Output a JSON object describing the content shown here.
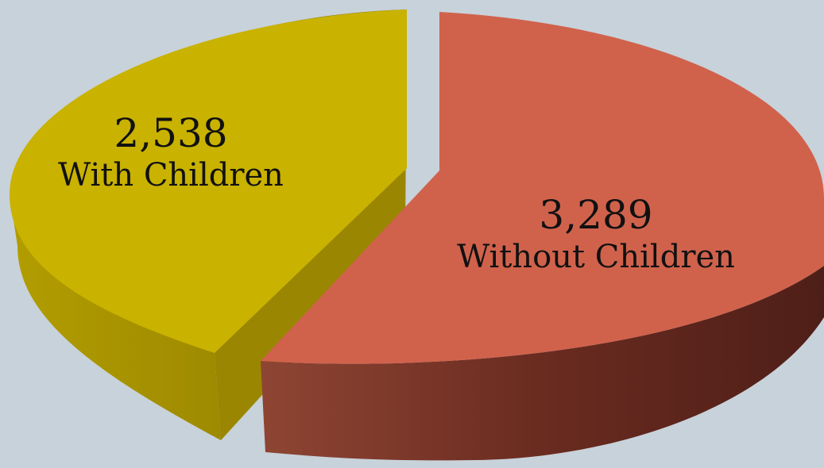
{
  "chart_data": {
    "type": "pie",
    "three_d": true,
    "exploded": true,
    "slices": [
      {
        "label": "With Children",
        "value": 2538,
        "value_label": "2,538",
        "color": "#c9b200",
        "side_color": "#a08c00"
      },
      {
        "label": "Without Children",
        "value": 3289,
        "value_label": "3,289",
        "color": "#d0624c",
        "side_color": "#6e2c20"
      }
    ],
    "legend": "none"
  },
  "background_color": "#c8d2da"
}
